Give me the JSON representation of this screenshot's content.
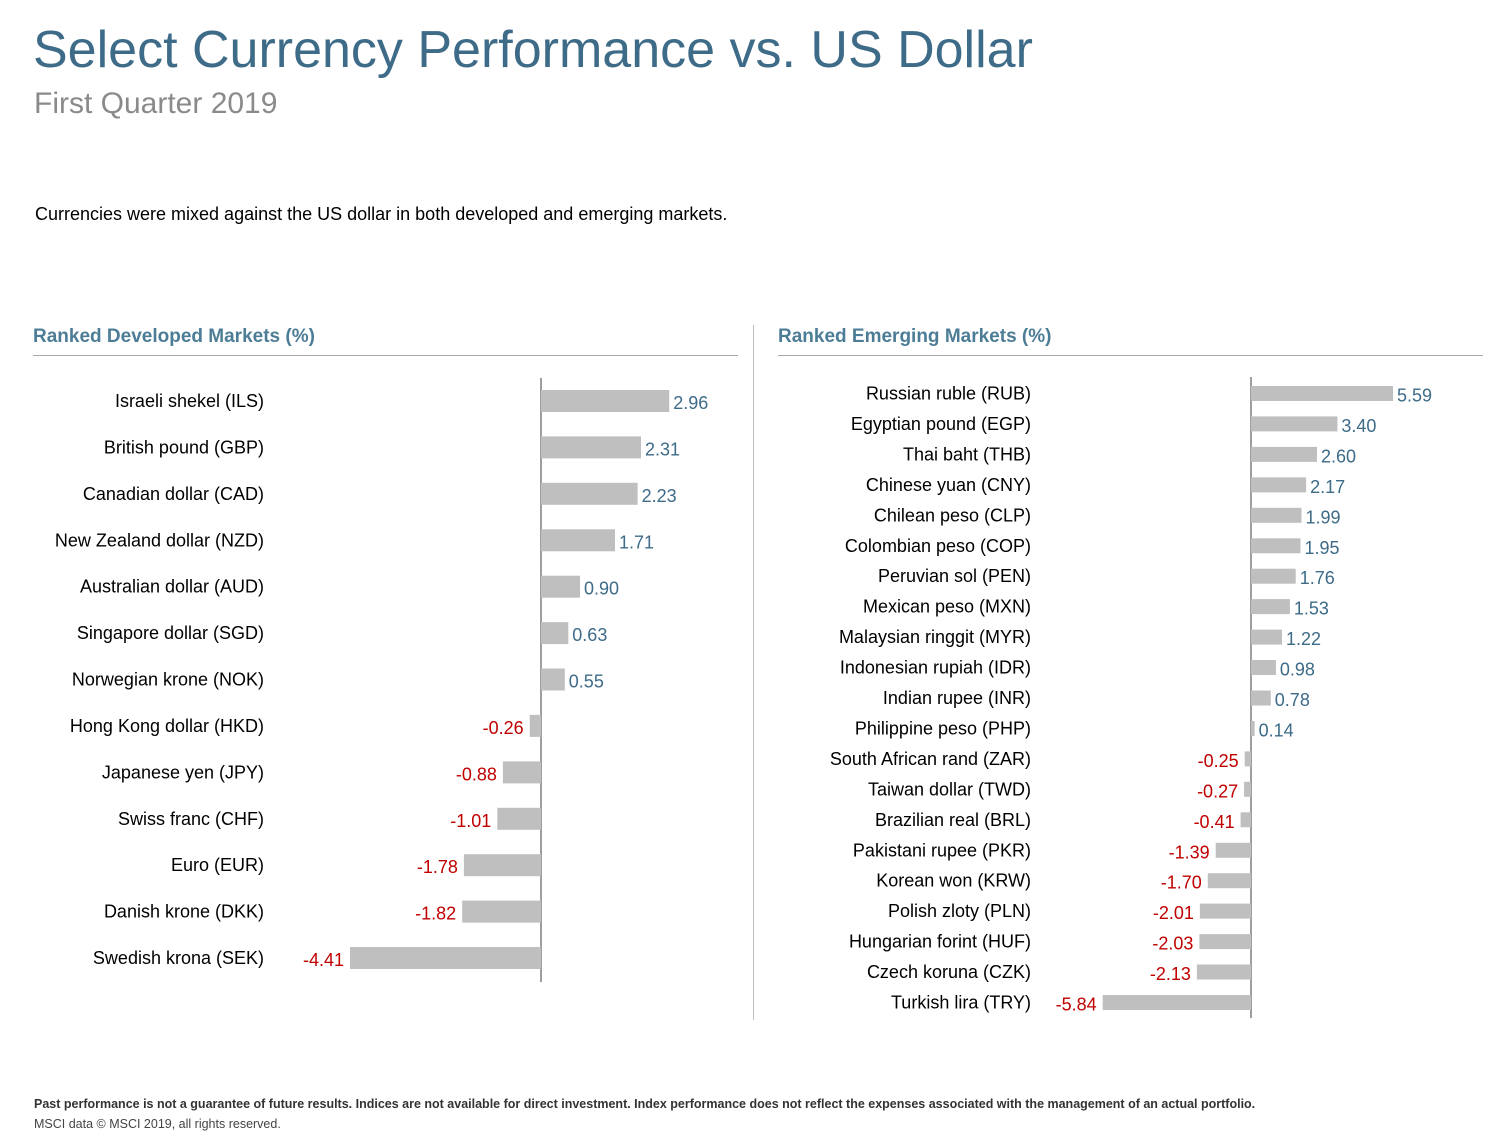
{
  "header": {
    "title": "Select Currency Performance vs. US Dollar",
    "subtitle": "First Quarter 2019",
    "intro": "Currencies were mixed against the US dollar in both developed and emerging markets."
  },
  "colors": {
    "title": "#3d6b88",
    "panel_title": "#4d7d96",
    "bar": "#bfbfbf",
    "positive_label": "#3d6b88",
    "negative_label": "#c00000"
  },
  "chart_data": [
    {
      "type": "bar",
      "orientation": "horizontal",
      "title": "Ranked Developed Markets (%)",
      "categories": [
        "Israeli shekel (ILS)",
        "British pound (GBP)",
        "Canadian dollar (CAD)",
        "New Zealand dollar (NZD)",
        "Australian dollar (AUD)",
        "Singapore dollar (SGD)",
        "Norwegian krone (NOK)",
        "Hong Kong dollar (HKD)",
        "Japanese yen (JPY)",
        "Swiss franc (CHF)",
        "Euro (EUR)",
        "Danish krone (DKK)",
        "Swedish krona (SEK)"
      ],
      "values": [
        2.96,
        2.31,
        2.23,
        1.71,
        0.9,
        0.63,
        0.55,
        -0.26,
        -0.88,
        -1.01,
        -1.78,
        -1.82,
        -4.41
      ],
      "labels": [
        "2.96",
        "2.31",
        "2.23",
        "1.71",
        "0.90",
        "0.63",
        "0.55",
        "-0.26",
        "-0.88",
        "-1.01",
        "-1.78",
        "-1.82",
        "-4.41"
      ]
    },
    {
      "type": "bar",
      "orientation": "horizontal",
      "title": "Ranked Emerging Markets (%)",
      "categories": [
        "Russian ruble (RUB)",
        "Egyptian pound (EGP)",
        "Thai baht (THB)",
        "Chinese yuan (CNY)",
        "Chilean peso (CLP)",
        "Colombian peso (COP)",
        "Peruvian sol (PEN)",
        "Mexican peso (MXN)",
        "Malaysian ringgit (MYR)",
        "Indonesian rupiah (IDR)",
        "Indian rupee (INR)",
        "Philippine peso (PHP)",
        "South African rand (ZAR)",
        "Taiwan dollar (TWD)",
        "Brazilian real (BRL)",
        "Pakistani rupee (PKR)",
        "Korean won (KRW)",
        "Polish zloty (PLN)",
        "Hungarian forint (HUF)",
        "Czech koruna (CZK)",
        "Turkish lira (TRY)"
      ],
      "values": [
        5.59,
        3.4,
        2.6,
        2.17,
        1.99,
        1.95,
        1.76,
        1.53,
        1.22,
        0.98,
        0.78,
        0.14,
        -0.25,
        -0.27,
        -0.41,
        -1.39,
        -1.7,
        -2.01,
        -2.03,
        -2.13,
        -5.84
      ],
      "labels": [
        "5.59",
        "3.40",
        "2.60",
        "2.17",
        "1.99",
        "1.95",
        "1.76",
        "1.53",
        "1.22",
        "0.98",
        "0.78",
        "0.14",
        "-0.25",
        "-0.27",
        "-0.41",
        "-1.39",
        "-1.70",
        "-2.01",
        "-2.03",
        "-2.13",
        "-5.84"
      ]
    }
  ],
  "footer": {
    "disclaimer": "Past performance is not a guarantee of future results. Indices are not available for direct investment. Index performance does not reflect the expenses associated with the management of an actual portfolio.",
    "source": "MSCI data © MSCI 2019, all rights reserved."
  }
}
